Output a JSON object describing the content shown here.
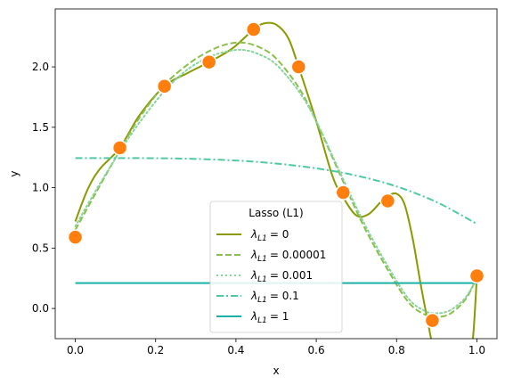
{
  "chart_data": {
    "type": "line",
    "xlabel": "x",
    "ylabel": "y",
    "xlim": [
      -0.05,
      1.05
    ],
    "ylim": [
      -0.25,
      2.48
    ],
    "x_ticks": [
      "0.0",
      "0.2",
      "0.4",
      "0.6",
      "0.8",
      "1.0"
    ],
    "y_ticks": [
      "0.0",
      "0.5",
      "1.0",
      "1.5",
      "2.0"
    ],
    "legend": {
      "title": "Lasso (L1)",
      "placement": "lower-center",
      "entries": [
        {
          "label_main": "λ",
          "label_sub": "L1",
          "label_value": "= 0"
        },
        {
          "label_main": "λ",
          "label_sub": "L1",
          "label_value": "= 0.00001"
        },
        {
          "label_main": "λ",
          "label_sub": "L1",
          "label_value": "= 0.001"
        },
        {
          "label_main": "λ",
          "label_sub": "L1",
          "label_value": "= 0.1"
        },
        {
          "label_main": "λ",
          "label_sub": "L1",
          "label_value": "= 1"
        }
      ]
    },
    "points": {
      "color": "#ff7f0e",
      "x": [
        0.0,
        0.111,
        0.222,
        0.333,
        0.444,
        0.556,
        0.667,
        0.778,
        0.889,
        1.0
      ],
      "y": [
        0.59,
        1.33,
        1.84,
        2.04,
        2.31,
        2.0,
        0.96,
        0.89,
        -0.1,
        0.27
      ]
    },
    "series": [
      {
        "color": "#8a9a00",
        "dash": "solid",
        "x": [
          0.0,
          0.03,
          0.06,
          0.111,
          0.16,
          0.222,
          0.28,
          0.333,
          0.39,
          0.444,
          0.47,
          0.5,
          0.53,
          0.556,
          0.6,
          0.64,
          0.667,
          0.7,
          0.73,
          0.76,
          0.778,
          0.8,
          0.82,
          0.84,
          0.86,
          0.88,
          0.89,
          0.9,
          0.98,
          0.99,
          1.0
        ],
        "y": [
          0.72,
          0.98,
          1.15,
          1.33,
          1.6,
          1.84,
          1.95,
          2.04,
          2.15,
          2.31,
          2.36,
          2.35,
          2.24,
          2.0,
          1.55,
          1.1,
          0.92,
          0.77,
          0.78,
          0.88,
          0.93,
          0.95,
          0.86,
          0.58,
          0.2,
          -0.15,
          -0.3,
          -0.3,
          -0.3,
          -0.25,
          0.27
        ]
      },
      {
        "color": "#8bbf4a",
        "dash": "dashed",
        "x": [
          0.0,
          0.05,
          0.111,
          0.16,
          0.222,
          0.28,
          0.333,
          0.38,
          0.42,
          0.46,
          0.5,
          0.556,
          0.6,
          0.667,
          0.72,
          0.778,
          0.83,
          0.87,
          0.9,
          0.93,
          0.96,
          0.98,
          1.0
        ],
        "y": [
          0.65,
          0.95,
          1.31,
          1.58,
          1.85,
          2.02,
          2.13,
          2.19,
          2.2,
          2.16,
          2.07,
          1.83,
          1.55,
          1.05,
          0.67,
          0.32,
          0.05,
          -0.05,
          -0.07,
          -0.05,
          0.03,
          0.12,
          0.26
        ]
      },
      {
        "color": "#88d49e",
        "dash": "dotted",
        "x": [
          0.0,
          0.05,
          0.111,
          0.16,
          0.222,
          0.28,
          0.333,
          0.38,
          0.42,
          0.46,
          0.5,
          0.556,
          0.6,
          0.667,
          0.72,
          0.778,
          0.83,
          0.87,
          0.9,
          0.93,
          0.96,
          0.98,
          1.0
        ],
        "y": [
          0.68,
          0.97,
          1.3,
          1.54,
          1.8,
          1.98,
          2.08,
          2.13,
          2.14,
          2.1,
          2.02,
          1.8,
          1.55,
          1.07,
          0.7,
          0.35,
          0.08,
          -0.02,
          -0.04,
          -0.02,
          0.05,
          0.13,
          0.25
        ]
      },
      {
        "color": "#4fc9a2",
        "dash": "dashdot",
        "x": [
          0.0,
          0.1,
          0.2,
          0.3,
          0.4,
          0.5,
          0.6,
          0.7,
          0.8,
          0.9,
          1.0
        ],
        "y": [
          1.245,
          1.245,
          1.244,
          1.238,
          1.225,
          1.2,
          1.16,
          1.1,
          1.01,
          0.88,
          0.7
        ]
      },
      {
        "color": "#1ab2a6",
        "dash": "solid",
        "x": [
          0.0,
          1.0
        ],
        "y": [
          0.21,
          0.21
        ]
      }
    ]
  }
}
